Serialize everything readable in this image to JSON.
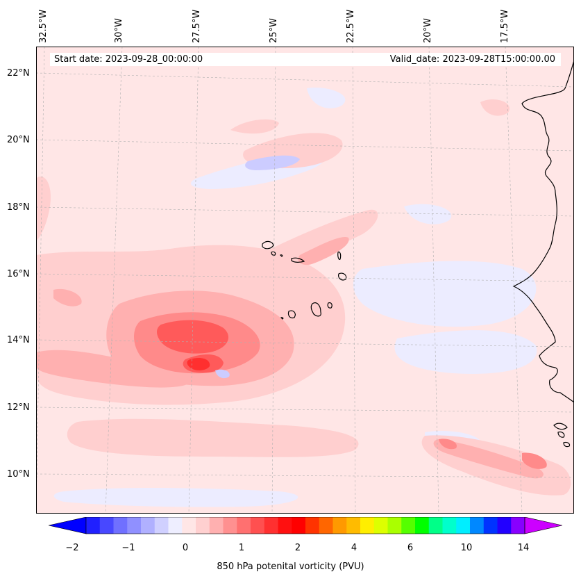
{
  "map": {
    "start_date": "Start date: 2023-09-28_00:00:00",
    "valid_date": "Valid_date: 2023-09-28T15:00:00.00",
    "lon_labels": [
      "32.5°W",
      "30°W",
      "27.5°W",
      "25°W",
      "22.5°W",
      "20°W",
      "17.5°W"
    ],
    "lat_labels": [
      "22°N",
      "20°N",
      "18°N",
      "16°N",
      "14°N",
      "12°N",
      "10°N"
    ],
    "field": "850 hPa potential vorticity",
    "region": "Eastern tropical Atlantic, Cape Verde Islands and West African coast",
    "features": {
      "vorticity_max": "positive PV maximum near 13.5°N 27.5°W",
      "islands": "Cape Verde Islands",
      "coast": "Senegal / Mauritania coastline"
    },
    "colors": {
      "background_field": "#ffe6e6",
      "pale_pink": "#ffcfcf",
      "pink": "#ffb0b0",
      "light_red": "#ff8a8a",
      "red": "#ff5a5a",
      "deep_red": "#ff2f2f",
      "pale_blue": "#ececff",
      "light_blue": "#ccccff",
      "coastline": "#000000"
    }
  },
  "colorbar": {
    "label": "850 hPa potenital vorticity (PVU)",
    "ticks": [
      "−2",
      "−1",
      "0",
      "1",
      "2",
      "4",
      "6",
      "10",
      "14"
    ],
    "extend": "both",
    "colors": [
      "#0000ff",
      "#2020ff",
      "#4848ff",
      "#7070ff",
      "#9090ff",
      "#b0b0ff",
      "#d0d0ff",
      "#eeeeff",
      "#ffe6e6",
      "#ffd0d0",
      "#ffb0b0",
      "#ff9090",
      "#ff7070",
      "#ff5050",
      "#ff3030",
      "#ff1010",
      "#ff0000",
      "#ff3300",
      "#ff6600",
      "#ff9900",
      "#ffbb00",
      "#ffee00",
      "#ddff00",
      "#aaff00",
      "#55ff00",
      "#00ff00",
      "#00ff88",
      "#00ffcc",
      "#00eeff",
      "#0088ff",
      "#0033ff",
      "#2200ff",
      "#8800ff",
      "#cc00ff"
    ]
  }
}
